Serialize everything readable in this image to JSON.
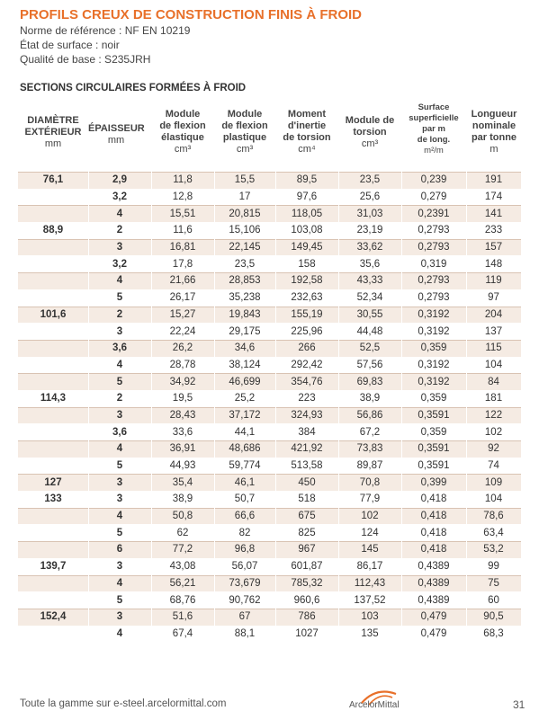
{
  "title": "PROFILS CREUX DE CONSTRUCTION FINIS À FROID",
  "meta": {
    "norme": "Norme de référence : NF EN 10219",
    "etat": "État de surface : noir",
    "qualite": "Qualité de base : S235JRH"
  },
  "section_title": "SECTIONS CIRCULAIRES FORMÉES À FROID",
  "headers": {
    "diametre": [
      "DIAMÈTRE",
      "EXTÉRIEUR",
      "mm"
    ],
    "epaisseur": [
      "ÉPAISSEUR",
      "mm"
    ],
    "module_elastique": [
      "Module",
      "de flexion",
      "élastique",
      "cm³"
    ],
    "module_plastique": [
      "Module",
      "de flexion",
      "plastique",
      "cm³"
    ],
    "moment_inertie": [
      "Moment",
      "d'inertie",
      "de torsion",
      "cm⁴"
    ],
    "module_torsion": [
      "Module de",
      "torsion",
      "cm³"
    ],
    "surface": [
      "Surface",
      "superficielle",
      "par m",
      "de long.",
      "m²/m"
    ],
    "longueur": [
      "Longueur",
      "nominale",
      "par tonne",
      "m"
    ]
  },
  "rows": [
    {
      "d": "76,1",
      "e": "2,9",
      "me": "11,8",
      "mp": "15,5",
      "mi": "89,5",
      "mt": "23,5",
      "s": "0,239",
      "l": "191"
    },
    {
      "d": "",
      "e": "3,2",
      "me": "12,8",
      "mp": "17",
      "mi": "97,6",
      "mt": "25,6",
      "s": "0,279",
      "l": "174"
    },
    {
      "d": "",
      "e": "4",
      "me": "15,51",
      "mp": "20,815",
      "mi": "118,05",
      "mt": "31,03",
      "s": "0,2391",
      "l": "141"
    },
    {
      "d": "88,9",
      "e": "2",
      "me": "11,6",
      "mp": "15,106",
      "mi": "103,08",
      "mt": "23,19",
      "s": "0,2793",
      "l": "233"
    },
    {
      "d": "",
      "e": "3",
      "me": "16,81",
      "mp": "22,145",
      "mi": "149,45",
      "mt": "33,62",
      "s": "0,2793",
      "l": "157"
    },
    {
      "d": "",
      "e": "3,2",
      "me": "17,8",
      "mp": "23,5",
      "mi": "158",
      "mt": "35,6",
      "s": "0,319",
      "l": "148"
    },
    {
      "d": "",
      "e": "4",
      "me": "21,66",
      "mp": "28,853",
      "mi": "192,58",
      "mt": "43,33",
      "s": "0,2793",
      "l": "119"
    },
    {
      "d": "",
      "e": "5",
      "me": "26,17",
      "mp": "35,238",
      "mi": "232,63",
      "mt": "52,34",
      "s": "0,2793",
      "l": "97"
    },
    {
      "d": "101,6",
      "e": "2",
      "me": "15,27",
      "mp": "19,843",
      "mi": "155,19",
      "mt": "30,55",
      "s": "0,3192",
      "l": "204"
    },
    {
      "d": "",
      "e": "3",
      "me": "22,24",
      "mp": "29,175",
      "mi": "225,96",
      "mt": "44,48",
      "s": "0,3192",
      "l": "137"
    },
    {
      "d": "",
      "e": "3,6",
      "me": "26,2",
      "mp": "34,6",
      "mi": "266",
      "mt": "52,5",
      "s": "0,359",
      "l": "115"
    },
    {
      "d": "",
      "e": "4",
      "me": "28,78",
      "mp": "38,124",
      "mi": "292,42",
      "mt": "57,56",
      "s": "0,3192",
      "l": "104"
    },
    {
      "d": "",
      "e": "5",
      "me": "34,92",
      "mp": "46,699",
      "mi": "354,76",
      "mt": "69,83",
      "s": "0,3192",
      "l": "84"
    },
    {
      "d": "114,3",
      "e": "2",
      "me": "19,5",
      "mp": "25,2",
      "mi": "223",
      "mt": "38,9",
      "s": "0,359",
      "l": "181"
    },
    {
      "d": "",
      "e": "3",
      "me": "28,43",
      "mp": "37,172",
      "mi": "324,93",
      "mt": "56,86",
      "s": "0,3591",
      "l": "122"
    },
    {
      "d": "",
      "e": "3,6",
      "me": "33,6",
      "mp": "44,1",
      "mi": "384",
      "mt": "67,2",
      "s": "0,359",
      "l": "102"
    },
    {
      "d": "",
      "e": "4",
      "me": "36,91",
      "mp": "48,686",
      "mi": "421,92",
      "mt": "73,83",
      "s": "0,3591",
      "l": "92"
    },
    {
      "d": "",
      "e": "5",
      "me": "44,93",
      "mp": "59,774",
      "mi": "513,58",
      "mt": "89,87",
      "s": "0,3591",
      "l": "74"
    },
    {
      "d": "127",
      "e": "3",
      "me": "35,4",
      "mp": "46,1",
      "mi": "450",
      "mt": "70,8",
      "s": "0,399",
      "l": "109"
    },
    {
      "d": "133",
      "e": "3",
      "me": "38,9",
      "mp": "50,7",
      "mi": "518",
      "mt": "77,9",
      "s": "0,418",
      "l": "104"
    },
    {
      "d": "",
      "e": "4",
      "me": "50,8",
      "mp": "66,6",
      "mi": "675",
      "mt": "102",
      "s": "0,418",
      "l": "78,6"
    },
    {
      "d": "",
      "e": "5",
      "me": "62",
      "mp": "82",
      "mi": "825",
      "mt": "124",
      "s": "0,418",
      "l": "63,4"
    },
    {
      "d": "",
      "e": "6",
      "me": "77,2",
      "mp": "96,8",
      "mi": "967",
      "mt": "145",
      "s": "0,418",
      "l": "53,2"
    },
    {
      "d": "139,7",
      "e": "3",
      "me": "43,08",
      "mp": "56,07",
      "mi": "601,87",
      "mt": "86,17",
      "s": "0,4389",
      "l": "99"
    },
    {
      "d": "",
      "e": "4",
      "me": "56,21",
      "mp": "73,679",
      "mi": "785,32",
      "mt": "112,43",
      "s": "0,4389",
      "l": "75"
    },
    {
      "d": "",
      "e": "5",
      "me": "68,76",
      "mp": "90,762",
      "mi": "960,6",
      "mt": "137,52",
      "s": "0,4389",
      "l": "60"
    },
    {
      "d": "152,4",
      "e": "3",
      "me": "51,6",
      "mp": "67",
      "mi": "786",
      "mt": "103",
      "s": "0,479",
      "l": "90,5"
    },
    {
      "d": "",
      "e": "4",
      "me": "67,4",
      "mp": "88,1",
      "mi": "1027",
      "mt": "135",
      "s": "0,479",
      "l": "68,3"
    }
  ],
  "footer": {
    "link_text": "Toute la gamme sur e-steel.arcelormittal.com",
    "brand": "ArcelorMittal",
    "page_number": "31"
  },
  "colors": {
    "accent": "#e8702a",
    "shade": "#f5ebe3"
  }
}
